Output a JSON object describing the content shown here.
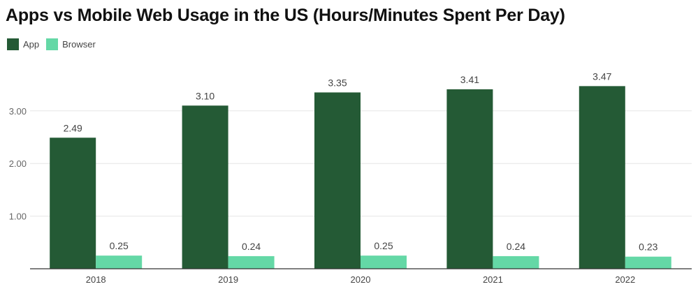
{
  "chart_data": {
    "type": "bar",
    "title": "Apps vs Mobile Web Usage in the US (Hours/Minutes Spent Per Day)",
    "categories": [
      "2018",
      "2019",
      "2020",
      "2021",
      "2022"
    ],
    "series": [
      {
        "name": "App",
        "color": "#245a35",
        "values": [
          2.49,
          3.1,
          3.35,
          3.41,
          3.47
        ]
      },
      {
        "name": "Browser",
        "color": "#64d8a6",
        "values": [
          0.25,
          0.24,
          0.25,
          0.24,
          0.23
        ]
      }
    ],
    "yticks": [
      "1.00",
      "2.00",
      "3.00"
    ],
    "ylim": [
      0,
      3.5
    ],
    "grid": true,
    "legend": "top-left",
    "data_labels": true
  }
}
